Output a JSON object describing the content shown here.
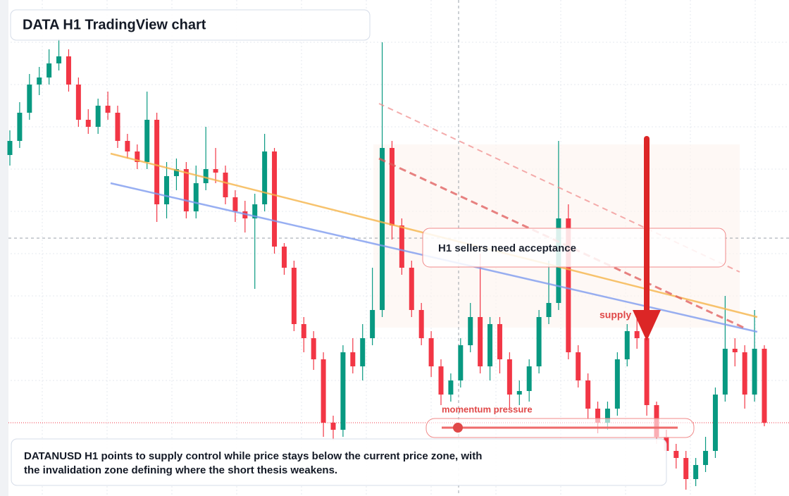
{
  "title": "DATA H1 TradingView chart",
  "chart_data": {
    "type": "candlestick",
    "open": [
      48,
      50,
      54,
      58,
      59,
      61,
      62,
      58,
      53,
      52,
      55,
      54,
      50,
      48.5,
      47,
      53,
      41,
      45,
      46,
      40,
      44,
      46,
      45.5,
      42,
      40,
      39,
      41,
      48.5,
      35,
      32,
      24,
      22,
      19,
      10,
      9,
      20,
      18,
      22,
      26,
      49,
      38,
      32,
      26,
      22,
      18,
      14,
      16,
      21,
      25,
      18,
      24,
      19,
      14,
      14.5,
      18,
      25,
      27,
      39,
      20,
      16,
      12,
      10,
      12,
      19,
      23,
      22,
      12.5,
      8,
      6,
      5,
      2,
      4,
      6,
      14,
      20.5,
      20,
      14,
      20.5
    ],
    "high": [
      51.5,
      55.5,
      59.5,
      60.5,
      63,
      64.5,
      63,
      59,
      54.5,
      56,
      57,
      55,
      51,
      49.5,
      57,
      54,
      47,
      47.5,
      47,
      46.5,
      52,
      49,
      46.5,
      43,
      41.5,
      42.5,
      51,
      49,
      35.5,
      33,
      25,
      23,
      20,
      11,
      21,
      22,
      24,
      32,
      64,
      50,
      39,
      33,
      27,
      23,
      19,
      17,
      22,
      27,
      34,
      25,
      25,
      20,
      16,
      19,
      26,
      33,
      50,
      41,
      21,
      17,
      13,
      13,
      20,
      24,
      25,
      23,
      13,
      9,
      7,
      6,
      5,
      8,
      15,
      28,
      22,
      21,
      26,
      21
    ],
    "low": [
      46.5,
      49,
      53,
      56.5,
      58,
      60,
      57,
      52,
      51,
      51,
      53,
      49,
      47.5,
      46,
      46,
      38.5,
      39,
      43,
      39,
      39,
      43,
      44,
      41,
      38.5,
      37,
      29,
      40,
      34,
      31,
      23,
      20,
      17.5,
      8,
      7.5,
      8,
      17,
      16,
      21,
      25,
      36,
      31,
      25,
      21,
      16.5,
      12.5,
      13,
      15,
      20,
      17,
      16,
      17,
      12,
      12.5,
      13,
      17,
      24,
      26,
      19,
      15,
      10.5,
      8.5,
      9,
      11,
      18,
      20.5,
      11,
      7,
      5,
      3.5,
      0.5,
      1,
      3,
      5,
      13,
      18,
      12,
      13,
      9.5
    ],
    "close": [
      50,
      54,
      58,
      59,
      61,
      62,
      58,
      53,
      52,
      55,
      54,
      50,
      48.5,
      47,
      53,
      41,
      45,
      46,
      40,
      44,
      46,
      45.5,
      42,
      40,
      39,
      41,
      48.5,
      35,
      32,
      24,
      22,
      19,
      10,
      9,
      20,
      18,
      22,
      26,
      49,
      38,
      32,
      26,
      22,
      18,
      14,
      16,
      21,
      25,
      18,
      24,
      19,
      14,
      14.5,
      18,
      25,
      27,
      39,
      20,
      16,
      12,
      10,
      12,
      19,
      23,
      22,
      12.5,
      8,
      6,
      5,
      2,
      4,
      6,
      14,
      20.5,
      20,
      14,
      20.5,
      10
    ],
    "ylim": [
      0,
      70
    ],
    "up_color": "#089981",
    "down_color": "#f23645"
  },
  "callout": "H1 sellers need acceptance",
  "supply_label": "supply",
  "momentum_label": "momentum pressure",
  "note": [
    "DATANUSD H1 points to supply control while price stays below the current price zone, with",
    "the invalidation zone defining where the short thesis weakens."
  ]
}
